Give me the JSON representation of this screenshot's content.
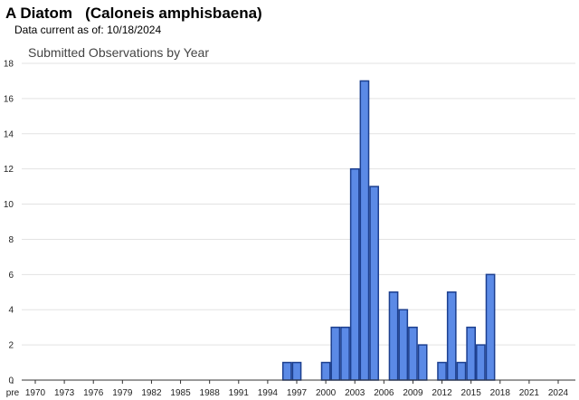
{
  "header": {
    "species_name": "A Diatom",
    "scientific_name": "(Caloneis amphisbaena)",
    "data_current_label": "Data current as of:",
    "data_current_date": "10/18/2024"
  },
  "colors": {
    "bar_fill": "#5b8ae6",
    "bar_stroke": "#1c3f8f",
    "grid": "#e3e3e3",
    "axis": "#333333"
  },
  "chart_data": {
    "type": "bar",
    "title": "Submitted Observations by Year",
    "xlabel": "",
    "ylabel": "",
    "ylim": [
      0,
      18
    ],
    "yticks": [
      0,
      2,
      4,
      6,
      8,
      10,
      12,
      14,
      16,
      18
    ],
    "grid": true,
    "legend": "none",
    "x_tick_labels": [
      "pre",
      "1970",
      "1973",
      "1976",
      "1979",
      "1982",
      "1985",
      "1988",
      "1991",
      "1994",
      "1997",
      "2000",
      "2003",
      "2006",
      "2009",
      "2012",
      "2015",
      "2018",
      "2021",
      "2024"
    ],
    "categories": [
      "1996",
      "1997",
      "2000",
      "2001",
      "2002",
      "2003",
      "2004",
      "2005",
      "2007",
      "2008",
      "2009",
      "2010",
      "2012",
      "2013",
      "2014",
      "2015",
      "2016",
      "2017"
    ],
    "values": [
      1,
      1,
      1,
      3,
      3,
      12,
      17,
      11,
      5,
      4,
      3,
      2,
      1,
      5,
      1,
      3,
      2,
      6
    ]
  }
}
